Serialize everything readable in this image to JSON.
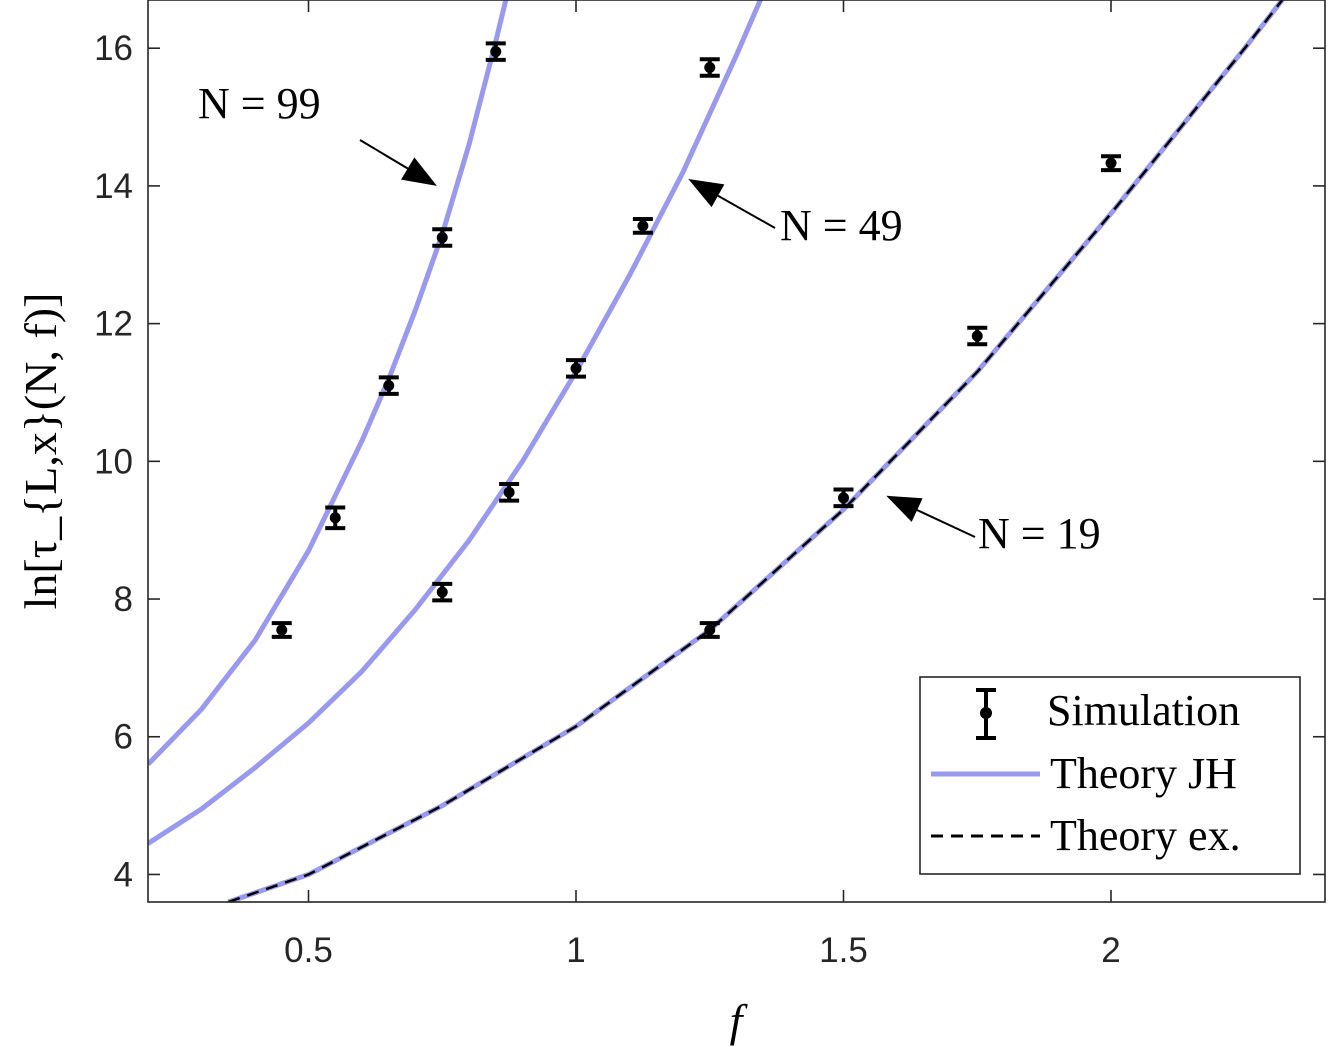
{
  "chart_data": {
    "type": "line",
    "xlabel": "f",
    "ylabel": "ln[τ_{L,x}(N, f)]",
    "xlim": [
      0.2,
      2.4
    ],
    "ylim": [
      3.6,
      16.7
    ],
    "xticks": [
      0.5,
      1,
      1.5,
      2
    ],
    "xtick_labels": [
      "0.5",
      "1",
      "1.5",
      "2"
    ],
    "yticks": [
      4,
      6,
      8,
      10,
      12,
      14,
      16
    ],
    "ytick_labels": [
      "4",
      "6",
      "8",
      "10",
      "12",
      "14",
      "16"
    ],
    "grid": false,
    "legend_position": "bottom-right",
    "legend": [
      {
        "label": "Simulation",
        "style": "errorbar"
      },
      {
        "label": "Theory JH",
        "style": "solid",
        "color": "#9999ee"
      },
      {
        "label": "Theory ex.",
        "style": "dashed",
        "color": "#000000"
      }
    ],
    "theory_jh": [
      {
        "name": "N = 99",
        "x": [
          0.2,
          0.3,
          0.4,
          0.5,
          0.6,
          0.65,
          0.7,
          0.75,
          0.8,
          0.85,
          0.9
        ],
        "y": [
          5.6,
          6.4,
          7.4,
          8.7,
          10.3,
          11.2,
          12.2,
          13.3,
          14.6,
          16.1,
          17.7
        ]
      },
      {
        "name": "N = 49",
        "x": [
          0.2,
          0.3,
          0.4,
          0.5,
          0.6,
          0.7,
          0.8,
          0.9,
          1.0,
          1.1,
          1.2,
          1.3,
          1.35
        ],
        "y": [
          4.45,
          4.95,
          5.55,
          6.2,
          6.95,
          7.85,
          8.85,
          10.0,
          11.3,
          12.7,
          14.2,
          15.9,
          16.8
        ]
      },
      {
        "name": "N = 19",
        "x": [
          0.35,
          0.5,
          0.75,
          1.0,
          1.25,
          1.5,
          1.75,
          2.0,
          2.25,
          2.35
        ],
        "y": [
          3.6,
          4.0,
          5.0,
          6.15,
          7.55,
          9.3,
          11.3,
          13.6,
          16.0,
          17.0
        ]
      }
    ],
    "theory_ex": [
      {
        "name": "N = 19",
        "x": [
          0.35,
          0.5,
          0.75,
          1.0,
          1.25,
          1.5,
          1.75,
          2.0,
          2.25,
          2.35
        ],
        "y": [
          3.6,
          4.0,
          5.0,
          6.15,
          7.55,
          9.3,
          11.3,
          13.6,
          16.0,
          17.0
        ]
      }
    ],
    "simulation": [
      {
        "name": "N = 99",
        "x": [
          0.45,
          0.55,
          0.65,
          0.75,
          0.85
        ],
        "y": [
          7.55,
          9.18,
          11.1,
          13.25,
          15.95
        ],
        "err": [
          0.1,
          0.15,
          0.12,
          0.12,
          0.12
        ]
      },
      {
        "name": "N = 49",
        "x": [
          0.75,
          0.875,
          1.0,
          1.125,
          1.25
        ],
        "y": [
          8.1,
          9.55,
          11.35,
          13.42,
          15.72
        ],
        "err": [
          0.12,
          0.12,
          0.12,
          0.1,
          0.12
        ]
      },
      {
        "name": "N = 19",
        "x": [
          1.25,
          1.5,
          1.75,
          2.0
        ],
        "y": [
          7.55,
          9.47,
          11.82,
          14.33
        ],
        "err": [
          0.1,
          0.12,
          0.12,
          0.1
        ]
      }
    ],
    "annotations": [
      {
        "text": "N = 99",
        "arrow_to": [
          0.74,
          14.0
        ]
      },
      {
        "text": "N = 49",
        "arrow_to": [
          1.21,
          14.1
        ]
      },
      {
        "text": "N = 19",
        "arrow_to": [
          1.58,
          9.5
        ]
      }
    ]
  }
}
